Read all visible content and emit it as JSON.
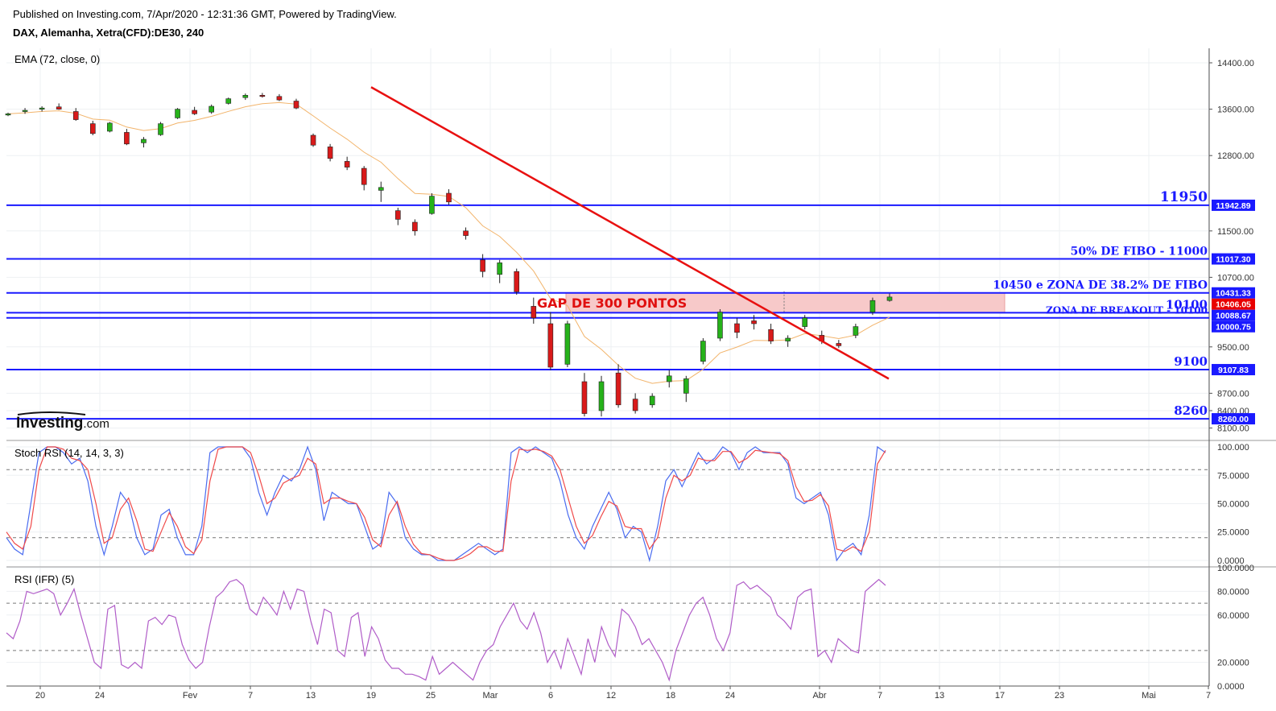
{
  "header": {
    "published": "Published on Investing.com, 7/Apr/2020 - 12:31:36 GMT, Powered by TradingView.",
    "symbol": "DAX, Alemanha, Xetra(CFD):DE30, 240"
  },
  "logo": {
    "brand": "Investing",
    "suffix": ".com"
  },
  "colors": {
    "up": "#26b21a",
    "down": "#d91a1a",
    "ema": "#f2b46b",
    "level": "#1a1aff",
    "trend": "#e81010",
    "gap_zone": "#f7c9c9",
    "stoch_k": "#4a6cf0",
    "stoch_d": "#f04a4a",
    "rsi": "#b05cc8",
    "badge_red": "#e80000",
    "badge_blue": "#1a1aff"
  },
  "panes": {
    "price": {
      "title": "EMA (72, close, 0)"
    },
    "stoch": {
      "title": "Stoch RSI (14, 14, 3, 3)"
    },
    "rsi": {
      "title": "RSI (IFR) (5)"
    }
  },
  "chart_data": {
    "type": "candlestick",
    "title": "DAX, Alemanha, Xetra(CFD):DE30, 240",
    "x_ticks": [
      "20",
      "24",
      "Fev",
      "7",
      "13",
      "19",
      "25",
      "Mar",
      "6",
      "12",
      "18",
      "24",
      "Abr",
      "7",
      "13",
      "17",
      "23",
      "Mai",
      "7"
    ],
    "price": {
      "ylim": [
        7900,
        14650
      ],
      "y_ticks": [
        "14400.00",
        "13600.00",
        "12800.00",
        "11500.00",
        "10700.00",
        "9500.00",
        "8700.00",
        "8400.00",
        "8100.00"
      ],
      "candle_samples": [
        [
          13500,
          13540,
          13480,
          13520
        ],
        [
          13560,
          13620,
          13520,
          13580
        ],
        [
          13600,
          13650,
          13560,
          13620
        ],
        [
          13640,
          13700,
          13590,
          13600
        ],
        [
          13560,
          13620,
          13400,
          13420
        ],
        [
          13350,
          13400,
          13150,
          13180
        ],
        [
          13220,
          13380,
          13200,
          13360
        ],
        [
          13200,
          13260,
          12980,
          13000
        ],
        [
          13020,
          13120,
          12940,
          13080
        ],
        [
          13160,
          13380,
          13140,
          13350
        ],
        [
          13450,
          13620,
          13430,
          13600
        ],
        [
          13580,
          13640,
          13500,
          13520
        ],
        [
          13550,
          13680,
          13520,
          13650
        ],
        [
          13700,
          13800,
          13680,
          13780
        ],
        [
          13800,
          13870,
          13760,
          13840
        ],
        [
          13840,
          13880,
          13800,
          13830
        ],
        [
          13820,
          13860,
          13740,
          13760
        ],
        [
          13740,
          13780,
          13600,
          13620
        ],
        [
          13150,
          13180,
          12950,
          12980
        ],
        [
          12950,
          13000,
          12700,
          12750
        ],
        [
          12700,
          12780,
          12550,
          12600
        ],
        [
          12580,
          12620,
          12200,
          12300
        ],
        [
          12200,
          12350,
          12000,
          12250
        ],
        [
          11850,
          11900,
          11600,
          11700
        ],
        [
          11650,
          11700,
          11420,
          11500
        ],
        [
          11800,
          12150,
          11780,
          12100
        ],
        [
          12150,
          12220,
          11950,
          12000
        ],
        [
          11500,
          11560,
          11350,
          11420
        ],
        [
          11000,
          11100,
          10700,
          10800
        ],
        [
          10750,
          11000,
          10600,
          10950
        ],
        [
          10800,
          10850,
          10400,
          10450
        ],
        [
          10200,
          10350,
          9900,
          10000
        ],
        [
          9900,
          10100,
          9100,
          9150
        ],
        [
          9200,
          9950,
          9150,
          9900
        ],
        [
          8900,
          9050,
          8300,
          8350
        ],
        [
          8400,
          9000,
          8300,
          8900
        ],
        [
          9050,
          9200,
          8450,
          8500
        ],
        [
          8600,
          8700,
          8350,
          8400
        ],
        [
          8500,
          8700,
          8450,
          8650
        ],
        [
          8900,
          9100,
          8800,
          9000
        ],
        [
          8700,
          9000,
          8550,
          8950
        ],
        [
          9250,
          9650,
          9200,
          9600
        ],
        [
          9650,
          10150,
          9600,
          10100
        ],
        [
          9900,
          10000,
          9650,
          9750
        ],
        [
          9950,
          10050,
          9800,
          9900
        ],
        [
          9800,
          9900,
          9550,
          9600
        ],
        [
          9600,
          9700,
          9500,
          9650
        ],
        [
          9850,
          10050,
          9800,
          10000
        ],
        [
          9700,
          9780,
          9550,
          9600
        ],
        [
          9560,
          9620,
          9480,
          9520
        ],
        [
          9700,
          9900,
          9650,
          9850
        ],
        [
          10100,
          10350,
          10050,
          10300
        ],
        [
          10300,
          10420,
          10280,
          10360
        ]
      ],
      "ema_label": "EMA (72, close, 0)",
      "trend_line": {
        "from": [
          "2020-01-19",
          13980
        ],
        "to": [
          "2020-04-08",
          8950
        ]
      },
      "levels": [
        {
          "label": "11950",
          "value": 11942.89,
          "badge": "11942.89",
          "label_size": 17
        },
        {
          "label": "50% DE FIBO - 11000",
          "value": 11017.3,
          "badge": "11017.30",
          "label_size": 14
        },
        {
          "label": "10450 e ZONA DE 38.2% DE FIBO",
          "value": 10431.33,
          "badge": "10431.33",
          "label_size": 14
        },
        {
          "label": "10100",
          "value": 10088.67,
          "badge": "10088.67",
          "label_size": 15
        },
        {
          "label": "ZONA DE BREAKOUT - 10100",
          "value": 10000.75,
          "badge": "10000.75",
          "label_size": 12
        },
        {
          "label": "9100",
          "value": 9107.83,
          "badge": "9107.83",
          "label_size": 15
        },
        {
          "label": "8260",
          "value": 8260.0,
          "badge": "8260.00",
          "label_size": 15
        }
      ],
      "last_price": {
        "value": 10406.05,
        "badge": "10406.05"
      },
      "gap_zone": {
        "label": "GAP DE 300 PONTOS",
        "low": 10088.67,
        "high": 10431.33
      }
    },
    "stoch_rsi": {
      "ylim": [
        -5,
        105
      ],
      "y_ticks": [
        "100.000",
        "75.0000",
        "50.0000",
        "25.0000",
        "0.0000"
      ],
      "bands": [
        80,
        20
      ],
      "k": [
        20,
        10,
        5,
        50,
        95,
        100,
        100,
        95,
        85,
        90,
        70,
        30,
        5,
        30,
        60,
        50,
        20,
        5,
        10,
        40,
        45,
        20,
        5,
        5,
        30,
        95,
        100,
        100,
        100,
        100,
        90,
        60,
        40,
        60,
        75,
        70,
        80,
        100,
        80,
        35,
        60,
        55,
        50,
        50,
        30,
        10,
        15,
        60,
        50,
        20,
        10,
        5,
        5,
        0,
        0,
        0,
        5,
        10,
        15,
        10,
        5,
        10,
        95,
        100,
        95,
        100,
        95,
        90,
        70,
        40,
        20,
        10,
        30,
        45,
        60,
        45,
        20,
        30,
        25,
        0,
        30,
        70,
        80,
        65,
        80,
        95,
        85,
        90,
        100,
        95,
        80,
        95,
        100,
        95,
        95,
        95,
        85,
        55,
        50,
        55,
        60,
        40,
        0,
        10,
        15,
        5,
        40,
        100,
        95
      ],
      "d": [
        25,
        15,
        10,
        30,
        80,
        100,
        100,
        98,
        90,
        88,
        80,
        50,
        15,
        20,
        45,
        55,
        35,
        10,
        8,
        25,
        42,
        30,
        12,
        6,
        18,
        70,
        98,
        100,
        100,
        100,
        95,
        75,
        50,
        55,
        68,
        72,
        75,
        90,
        85,
        50,
        55,
        55,
        52,
        50,
        38,
        18,
        12,
        40,
        52,
        30,
        14,
        6,
        5,
        2,
        0,
        0,
        2,
        6,
        12,
        12,
        8,
        8,
        70,
        98,
        97,
        98,
        96,
        92,
        80,
        55,
        30,
        15,
        22,
        38,
        52,
        48,
        30,
        28,
        28,
        10,
        20,
        55,
        75,
        70,
        75,
        90,
        88,
        88,
        96,
        96,
        86,
        90,
        97,
        96,
        95,
        94,
        88,
        65,
        52,
        53,
        58,
        48,
        10,
        8,
        12,
        8,
        25,
        85,
        97
      ]
    },
    "rsi": {
      "ylim": [
        0,
        100
      ],
      "y_ticks": [
        "100.0000",
        "80.0000",
        "60.0000",
        "20.0000",
        "0.0000"
      ],
      "bands": [
        70,
        30
      ],
      "values": [
        45,
        40,
        55,
        80,
        78,
        80,
        82,
        78,
        60,
        70,
        82,
        60,
        40,
        20,
        15,
        65,
        68,
        18,
        15,
        20,
        15,
        55,
        58,
        52,
        60,
        58,
        35,
        22,
        15,
        20,
        50,
        75,
        80,
        88,
        90,
        85,
        65,
        60,
        75,
        68,
        60,
        80,
        65,
        82,
        80,
        55,
        35,
        65,
        62,
        30,
        25,
        58,
        62,
        25,
        50,
        40,
        22,
        15,
        15,
        10,
        10,
        8,
        5,
        25,
        10,
        15,
        20,
        15,
        10,
        5,
        20,
        30,
        35,
        50,
        60,
        70,
        55,
        48,
        62,
        45,
        20,
        30,
        15,
        40,
        25,
        10,
        40,
        20,
        50,
        35,
        25,
        65,
        60,
        50,
        35,
        40,
        30,
        20,
        5,
        30,
        45,
        60,
        70,
        75,
        60,
        40,
        30,
        45,
        85,
        88,
        82,
        85,
        80,
        75,
        60,
        55,
        48,
        75,
        80,
        82,
        25,
        30,
        20,
        40,
        35,
        30,
        28,
        80,
        85,
        90,
        85
      ]
    }
  }
}
